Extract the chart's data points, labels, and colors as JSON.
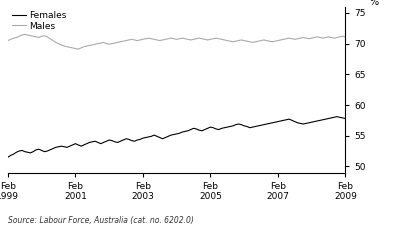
{
  "title": "",
  "ylabel_right": "%",
  "source_text": "Source: Labour Force, Australia (cat. no. 6202.0)",
  "legend_entries": [
    "Females",
    "Males"
  ],
  "females_color": "#000000",
  "males_color": "#aaaaaa",
  "ylim": [
    49,
    76
  ],
  "yticks": [
    50,
    55,
    60,
    65,
    70,
    75
  ],
  "xtick_labels": [
    "Feb\n1999",
    "Feb\n2001",
    "Feb\n2003",
    "Feb\n2005",
    "Feb\n2007",
    "Feb\n2009"
  ],
  "xtick_positions": [
    0,
    24,
    48,
    72,
    96,
    120
  ],
  "x_total": 121,
  "females_data": [
    51.5,
    51.8,
    52.0,
    52.3,
    52.5,
    52.6,
    52.4,
    52.3,
    52.2,
    52.4,
    52.7,
    52.8,
    52.6,
    52.4,
    52.5,
    52.7,
    52.9,
    53.1,
    53.2,
    53.3,
    53.2,
    53.1,
    53.3,
    53.5,
    53.7,
    53.5,
    53.3,
    53.5,
    53.7,
    53.9,
    54.0,
    54.1,
    53.9,
    53.7,
    53.9,
    54.1,
    54.3,
    54.2,
    54.0,
    53.9,
    54.1,
    54.3,
    54.5,
    54.4,
    54.2,
    54.1,
    54.3,
    54.4,
    54.6,
    54.7,
    54.8,
    54.9,
    55.1,
    54.9,
    54.7,
    54.5,
    54.7,
    54.9,
    55.1,
    55.2,
    55.3,
    55.4,
    55.6,
    55.7,
    55.8,
    56.0,
    56.2,
    56.1,
    55.9,
    55.8,
    56.0,
    56.2,
    56.4,
    56.3,
    56.1,
    56.0,
    56.2,
    56.3,
    56.4,
    56.5,
    56.6,
    56.8,
    56.9,
    56.8,
    56.6,
    56.5,
    56.3,
    56.4,
    56.5,
    56.6,
    56.7,
    56.8,
    56.9,
    57.0,
    57.1,
    57.2,
    57.3,
    57.4,
    57.5,
    57.6,
    57.7,
    57.5,
    57.3,
    57.1,
    57.0,
    56.9,
    57.0,
    57.1,
    57.2,
    57.3,
    57.4,
    57.5,
    57.6,
    57.7,
    57.8,
    57.9,
    58.0,
    58.1,
    58.0,
    57.9,
    57.8
  ],
  "males_data": [
    70.5,
    70.7,
    70.9,
    71.0,
    71.2,
    71.4,
    71.5,
    71.4,
    71.3,
    71.2,
    71.1,
    71.0,
    71.2,
    71.3,
    71.1,
    70.8,
    70.5,
    70.2,
    70.0,
    69.8,
    69.6,
    69.5,
    69.4,
    69.3,
    69.2,
    69.1,
    69.3,
    69.5,
    69.6,
    69.7,
    69.8,
    69.9,
    70.0,
    70.1,
    70.2,
    70.0,
    69.9,
    70.0,
    70.1,
    70.2,
    70.3,
    70.4,
    70.5,
    70.6,
    70.7,
    70.6,
    70.5,
    70.6,
    70.7,
    70.8,
    70.9,
    70.8,
    70.7,
    70.6,
    70.5,
    70.6,
    70.7,
    70.8,
    70.9,
    70.8,
    70.7,
    70.8,
    70.9,
    70.8,
    70.7,
    70.6,
    70.7,
    70.8,
    70.9,
    70.8,
    70.7,
    70.6,
    70.7,
    70.8,
    70.9,
    70.8,
    70.7,
    70.6,
    70.5,
    70.4,
    70.3,
    70.4,
    70.5,
    70.6,
    70.5,
    70.4,
    70.3,
    70.2,
    70.3,
    70.4,
    70.5,
    70.6,
    70.5,
    70.4,
    70.3,
    70.4,
    70.5,
    70.6,
    70.7,
    70.8,
    70.9,
    70.8,
    70.7,
    70.8,
    70.9,
    71.0,
    70.9,
    70.8,
    70.9,
    71.0,
    71.1,
    71.0,
    70.9,
    71.0,
    71.1,
    71.0,
    70.9,
    71.0,
    71.1,
    71.2,
    71.1
  ]
}
